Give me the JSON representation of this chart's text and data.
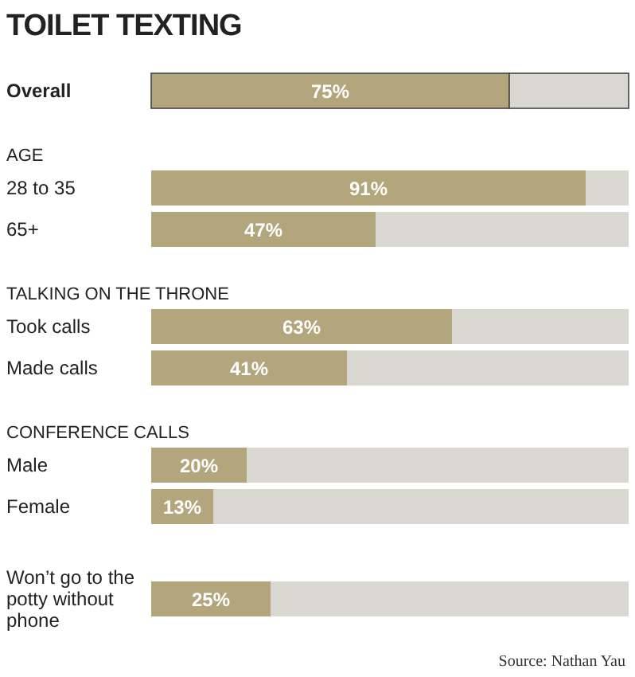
{
  "chart_data": {
    "type": "bar",
    "orientation": "horizontal",
    "stacked": true,
    "title": "TOILET TEXTING",
    "categories": [
      "Overall",
      "AGE",
      "28 to 35",
      "65+",
      "TALKING ON THE THRONE",
      "Took calls",
      "Made calls",
      "CONFERENCE CALLS",
      "Male",
      "Female",
      "Won’t go to the potty without phone"
    ],
    "series": [
      {
        "color": "#b3a57c",
        "values": [
          75,
          null,
          91,
          47,
          null,
          63,
          41,
          null,
          20,
          13,
          25
        ],
        "value_labels": [
          "75%",
          null,
          "91%",
          "47%",
          null,
          "63%",
          "41%",
          null,
          "20%",
          "13%",
          "25%"
        ]
      },
      {
        "color": "#d9d8d0",
        "values": [
          25,
          null,
          9,
          53,
          null,
          37,
          59,
          null,
          80,
          87,
          75
        ]
      }
    ],
    "xlim": [
      0,
      100
    ],
    "tick_labels": false,
    "annotations": [
      "Source: Nathan Yau"
    ]
  }
}
